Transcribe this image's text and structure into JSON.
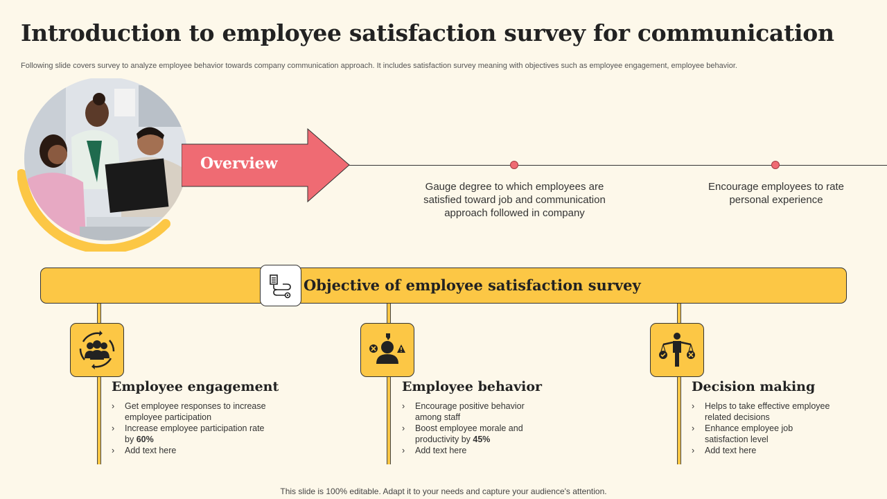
{
  "header": {
    "title": "Introduction to employee satisfaction survey for communication",
    "subtitle": "Following slide covers survey to analyze employee behavior towards company communication approach. It includes satisfaction survey meaning with objectives such as employee engagement, employee behavior."
  },
  "overview": {
    "label": "Overview",
    "points": [
      "Gauge degree to which employees are satisfied toward job and communication approach followed in company",
      "Encourage employees to rate personal experience"
    ]
  },
  "objective": {
    "title": "Objective of employee satisfaction survey",
    "columns": [
      {
        "title": "Employee engagement",
        "icon": "team-cycle-icon",
        "bullets": [
          {
            "text": "Get employee responses to increase employee participation",
            "bold": ""
          },
          {
            "text": "Increase employee participation rate by ",
            "bold": "60%"
          },
          {
            "text": "Add text here",
            "bold": ""
          }
        ]
      },
      {
        "title": "Employee behavior",
        "icon": "behavior-icon",
        "bullets": [
          {
            "text": "Encourage positive behavior among staff",
            "bold": ""
          },
          {
            "text": "Boost employee morale and productivity by ",
            "bold": "45%"
          },
          {
            "text": "Add text here",
            "bold": ""
          }
        ]
      },
      {
        "title": "Decision making",
        "icon": "balance-person-icon",
        "bullets": [
          {
            "text": "Helps to take effective employee related decisions",
            "bold": ""
          },
          {
            "text": "Enhance employee job satisfaction level",
            "bold": ""
          },
          {
            "text": "Add text here",
            "bold": ""
          }
        ]
      }
    ]
  },
  "footer": {
    "text": "This slide is 100% editable. Adapt it to your needs and capture your audience's attention."
  },
  "colors": {
    "background": "#fdf8ea",
    "accent_yellow": "#fcc745",
    "accent_red": "#ef6b73",
    "text_dark": "#222222"
  }
}
